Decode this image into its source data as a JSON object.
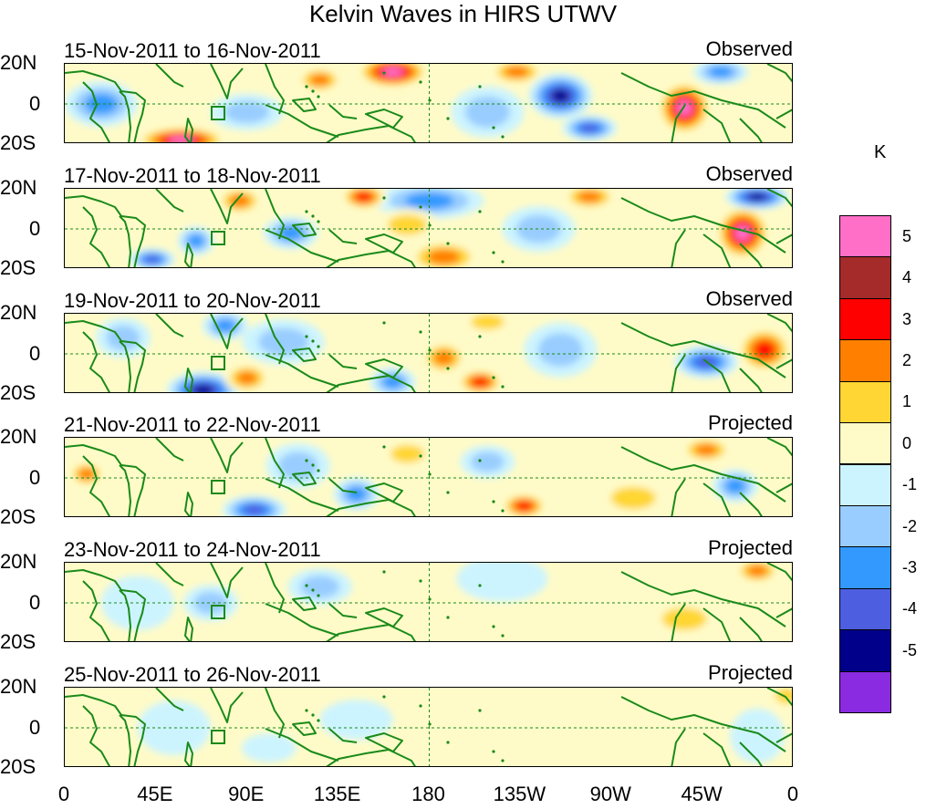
{
  "title": "Kelvin Waves in HIRS UTWV",
  "lat_labels": [
    "20N",
    "0",
    "20S"
  ],
  "lon_labels": [
    "0",
    "45E",
    "90E",
    "135E",
    "180",
    "135W",
    "90W",
    "45W",
    "0"
  ],
  "panels": [
    {
      "dates": "15-Nov-2011 to 16-Nov-2011",
      "kind": "Observed",
      "blobs": [
        [
          0.45,
          0.1,
          5,
          40,
          18
        ],
        [
          0.35,
          0.2,
          3,
          25,
          14
        ],
        [
          0.68,
          0.4,
          -5,
          35,
          25
        ],
        [
          0.72,
          0.8,
          -4,
          30,
          14
        ],
        [
          0.16,
          0.95,
          5,
          50,
          15
        ],
        [
          0.05,
          0.5,
          -3,
          40,
          25
        ],
        [
          0.58,
          0.6,
          -2,
          40,
          28
        ],
        [
          0.85,
          0.55,
          5,
          30,
          30
        ],
        [
          0.9,
          0.1,
          -3,
          30,
          14
        ],
        [
          0.25,
          0.6,
          -2,
          40,
          20
        ],
        [
          0.62,
          0.1,
          3,
          30,
          14
        ]
      ]
    },
    {
      "dates": "17-Nov-2011 to 18-Nov-2011",
      "kind": "Observed",
      "blobs": [
        [
          0.5,
          0.15,
          -3,
          60,
          20
        ],
        [
          0.52,
          0.85,
          3,
          40,
          18
        ],
        [
          0.31,
          0.55,
          -3,
          30,
          18
        ],
        [
          0.41,
          0.1,
          4,
          25,
          14
        ],
        [
          0.47,
          0.45,
          2,
          35,
          18
        ],
        [
          0.93,
          0.55,
          5,
          30,
          30
        ],
        [
          0.95,
          0.1,
          -5,
          35,
          14
        ],
        [
          0.65,
          0.5,
          -2,
          40,
          25
        ],
        [
          0.18,
          0.65,
          -3,
          20,
          16
        ],
        [
          0.12,
          0.88,
          -4,
          25,
          12
        ],
        [
          0.72,
          0.1,
          3,
          30,
          14
        ],
        [
          0.24,
          0.15,
          3,
          25,
          15
        ]
      ]
    },
    {
      "dates": "19-Nov-2011 to 20-Nov-2011",
      "kind": "Observed",
      "blobs": [
        [
          0.19,
          0.95,
          -5,
          40,
          20
        ],
        [
          0.25,
          0.8,
          3,
          25,
          16
        ],
        [
          0.45,
          0.85,
          -3,
          25,
          16
        ],
        [
          0.52,
          0.55,
          3,
          25,
          18
        ],
        [
          0.57,
          0.85,
          4,
          25,
          14
        ],
        [
          0.88,
          0.6,
          -4,
          35,
          18
        ],
        [
          0.96,
          0.45,
          4,
          30,
          25
        ],
        [
          0.3,
          0.35,
          -2,
          45,
          25
        ],
        [
          0.08,
          0.3,
          -2,
          30,
          22
        ],
        [
          0.22,
          0.15,
          -3,
          25,
          16
        ],
        [
          0.68,
          0.45,
          -2,
          40,
          30
        ],
        [
          0.58,
          0.1,
          2,
          30,
          14
        ]
      ]
    },
    {
      "dates": "21-Nov-2011 to 22-Nov-2011",
      "kind": "Projected",
      "blobs": [
        [
          0.26,
          0.9,
          -4,
          35,
          16
        ],
        [
          0.32,
          0.35,
          -2,
          35,
          25
        ],
        [
          0.4,
          0.7,
          -3,
          25,
          18
        ],
        [
          0.63,
          0.85,
          4,
          25,
          14
        ],
        [
          0.88,
          0.15,
          3,
          28,
          14
        ],
        [
          0.92,
          0.6,
          -3,
          25,
          18
        ],
        [
          0.03,
          0.45,
          3,
          20,
          14
        ],
        [
          0.47,
          0.2,
          2,
          30,
          16
        ],
        [
          0.78,
          0.75,
          2,
          40,
          20
        ],
        [
          0.58,
          0.3,
          -2,
          30,
          18
        ]
      ]
    },
    {
      "dates": "23-Nov-2011 to 24-Nov-2011",
      "kind": "Projected",
      "blobs": [
        [
          0.85,
          0.7,
          2,
          40,
          20
        ],
        [
          0.95,
          0.1,
          3,
          25,
          14
        ],
        [
          0.2,
          0.5,
          -2,
          30,
          20
        ],
        [
          0.35,
          0.3,
          -2,
          35,
          20
        ],
        [
          0.45,
          0.45,
          1,
          40,
          22
        ],
        [
          0.6,
          0.2,
          -1,
          50,
          25
        ],
        [
          0.73,
          0.6,
          1,
          40,
          20
        ],
        [
          0.1,
          0.5,
          -1,
          40,
          30
        ]
      ]
    },
    {
      "dates": "25-Nov-2011 to 26-Nov-2011",
      "kind": "Projected",
      "blobs": [
        [
          0.95,
          0.6,
          -1,
          30,
          30
        ],
        [
          0.99,
          0.1,
          2,
          20,
          14
        ],
        [
          0.84,
          0.9,
          1,
          35,
          14
        ],
        [
          0.15,
          0.5,
          -1,
          40,
          30
        ],
        [
          0.4,
          0.4,
          -1,
          40,
          22
        ],
        [
          0.62,
          0.5,
          1,
          45,
          25
        ],
        [
          0.28,
          0.75,
          -1,
          30,
          16
        ]
      ]
    }
  ],
  "colorbar": {
    "units": "K",
    "labels": [
      "5",
      "4",
      "3",
      "2",
      "1",
      "0",
      "-1",
      "-2",
      "-3",
      "-4",
      "-5"
    ],
    "colors": [
      "#ff6ec7",
      "#a52a2a",
      "#ff0000",
      "#ff7f00",
      "#ffd633",
      "#fffbc8",
      "#ccf4ff",
      "#99cdff",
      "#3399ff",
      "#4d5fe0",
      "#00008b",
      "#8a2be2"
    ]
  },
  "colors": {
    "land": "#1a8a1a",
    "grid": "#1a8a1a"
  }
}
